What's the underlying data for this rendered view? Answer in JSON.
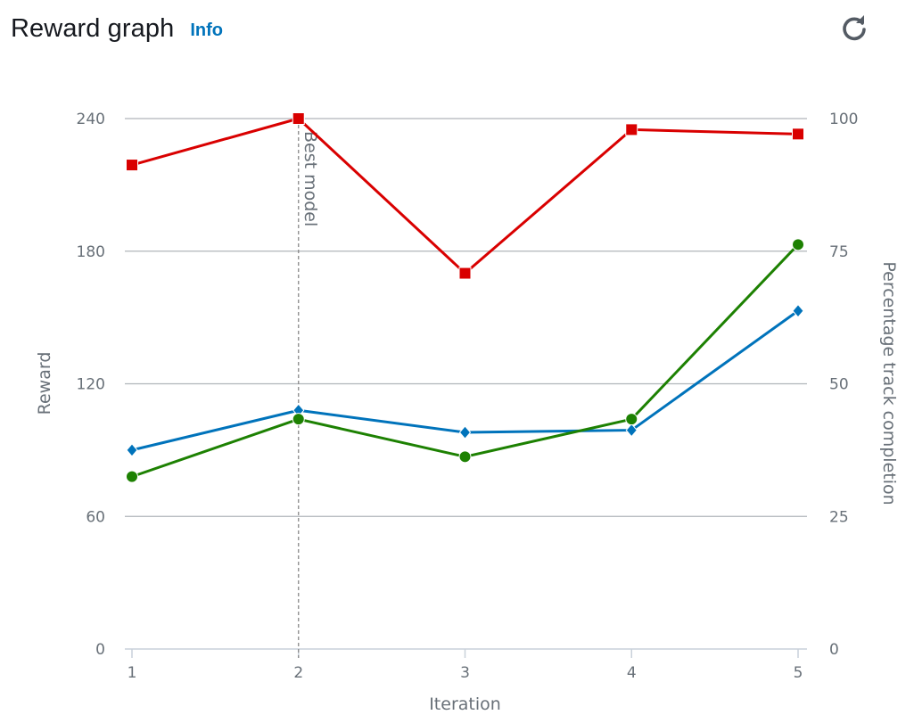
{
  "header": {
    "title": "Reward graph",
    "info_label": "Info",
    "refresh_icon": "refresh-icon"
  },
  "chart_data": {
    "type": "line",
    "title": "",
    "xlabel": "Iteration",
    "ylabel": "Reward",
    "y2label": "Percentage track completion",
    "x": [
      1,
      2,
      3,
      4,
      5
    ],
    "ylim": [
      0,
      240
    ],
    "y2lim": [
      0,
      100
    ],
    "yticks": [
      0,
      60,
      120,
      180,
      240
    ],
    "y2ticks": [
      0,
      25,
      50,
      75,
      100
    ],
    "grid": true,
    "series": [
      {
        "axis": "left",
        "marker": "square",
        "color": "#d90000",
        "values": [
          219,
          240,
          170,
          235,
          233
        ]
      },
      {
        "axis": "left",
        "marker": "diamond",
        "color": "#0073bb",
        "values": [
          90,
          108,
          98,
          99,
          153
        ]
      },
      {
        "axis": "left",
        "marker": "circle",
        "color": "#1d8102",
        "values": [
          78,
          104,
          87,
          104,
          183
        ]
      }
    ],
    "annotations": [
      {
        "x": 2,
        "label": "Best model"
      }
    ]
  }
}
